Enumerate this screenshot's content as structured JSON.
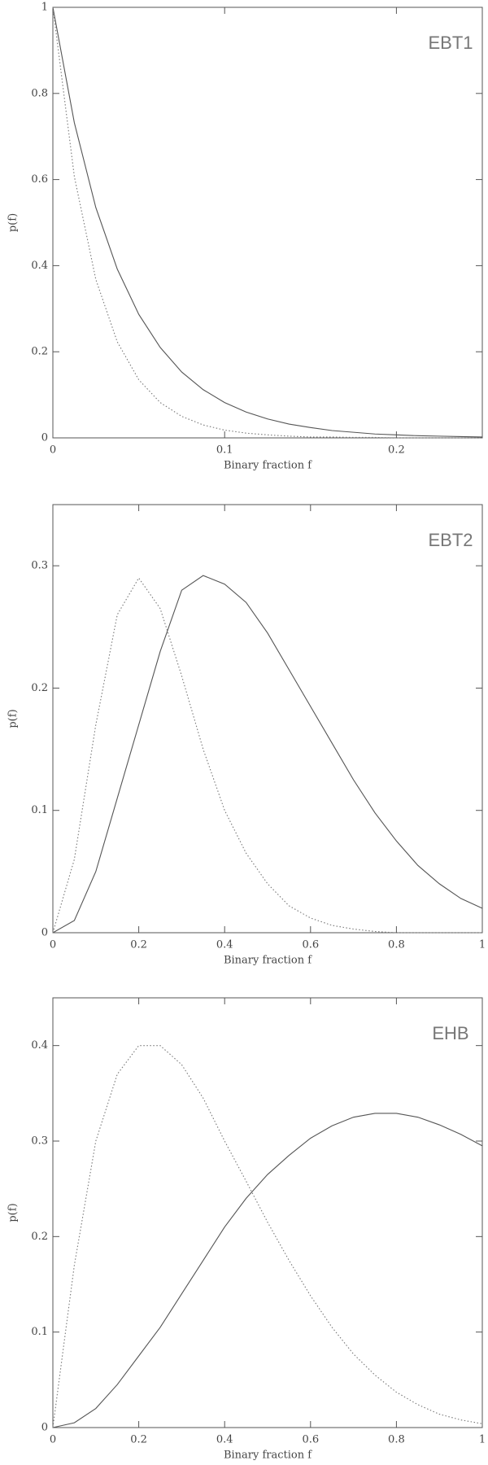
{
  "chart_data": [
    {
      "type": "line",
      "annotation": "EBT1",
      "xlabel": "Binary fraction f",
      "ylabel": "p(f)",
      "x": [
        0,
        0.0125,
        0.025,
        0.0375,
        0.05,
        0.0625,
        0.075,
        0.0875,
        0.1,
        0.1125,
        0.125,
        0.1375,
        0.15,
        0.1625,
        0.175,
        0.1875,
        0.2,
        0.2125,
        0.225,
        0.2375,
        0.25
      ],
      "series": [
        {
          "color": "#555555",
          "dashed": false,
          "values": [
            1,
            0.732,
            0.535,
            0.392,
            0.287,
            0.21,
            0.153,
            0.112,
            0.082,
            0.06,
            0.044,
            0.032,
            0.024,
            0.017,
            0.013,
            0.009,
            0.007,
            0.005,
            0.004,
            0.003,
            0.002
          ]
        },
        {
          "color": "#777777",
          "dashed": true,
          "values": [
            1,
            0.607,
            0.368,
            0.223,
            0.135,
            0.082,
            0.05,
            0.03,
            0.018,
            0.011,
            0.007,
            0.004,
            0.002,
            0.002,
            0.001,
            0.001,
            0,
            0,
            0,
            0,
            0
          ]
        }
      ],
      "xlim": [
        0,
        0.25
      ],
      "ylim": [
        0,
        1
      ],
      "xticks": [
        0,
        0.1,
        0.2
      ],
      "yticks": [
        0,
        0.2,
        0.4,
        0.6,
        0.8,
        1
      ]
    },
    {
      "type": "line",
      "annotation": "EBT2",
      "xlabel": "Binary fraction f",
      "ylabel": "p(f)",
      "x": [
        0,
        0.05,
        0.1,
        0.15,
        0.2,
        0.25,
        0.3,
        0.35,
        0.4,
        0.45,
        0.5,
        0.55,
        0.6,
        0.65,
        0.7,
        0.75,
        0.8,
        0.85,
        0.9,
        0.95,
        1
      ],
      "series": [
        {
          "color": "#555555",
          "dashed": false,
          "values": [
            0,
            0.01,
            0.05,
            0.11,
            0.17,
            0.23,
            0.28,
            0.292,
            0.285,
            0.27,
            0.245,
            0.215,
            0.185,
            0.155,
            0.125,
            0.098,
            0.075,
            0.055,
            0.04,
            0.028,
            0.02
          ]
        },
        {
          "color": "#777777",
          "dashed": true,
          "values": [
            0,
            0.06,
            0.17,
            0.26,
            0.29,
            0.265,
            0.21,
            0.15,
            0.1,
            0.065,
            0.04,
            0.022,
            0.012,
            0.006,
            0.003,
            0.001,
            0,
            0,
            0,
            0,
            0
          ]
        }
      ],
      "xlim": [
        0,
        1
      ],
      "ylim": [
        0,
        0.35
      ],
      "xticks": [
        0,
        0.2,
        0.4,
        0.6,
        0.8,
        1
      ],
      "yticks": [
        0,
        0.1,
        0.2,
        0.3
      ]
    },
    {
      "type": "line",
      "annotation": "EHB",
      "xlabel": "Binary fraction f",
      "ylabel": "p(f)",
      "x": [
        0,
        0.05,
        0.1,
        0.15,
        0.2,
        0.25,
        0.3,
        0.35,
        0.4,
        0.45,
        0.5,
        0.55,
        0.6,
        0.65,
        0.7,
        0.75,
        0.8,
        0.85,
        0.9,
        0.95,
        1
      ],
      "series": [
        {
          "color": "#555555",
          "dashed": false,
          "values": [
            0,
            0.005,
            0.02,
            0.045,
            0.075,
            0.105,
            0.14,
            0.175,
            0.21,
            0.24,
            0.265,
            0.285,
            0.303,
            0.316,
            0.325,
            0.329,
            0.329,
            0.325,
            0.317,
            0.307,
            0.295
          ]
        },
        {
          "color": "#777777",
          "dashed": true,
          "values": [
            0,
            0.17,
            0.3,
            0.37,
            0.4,
            0.4,
            0.38,
            0.345,
            0.3,
            0.258,
            0.215,
            0.175,
            0.138,
            0.105,
            0.077,
            0.055,
            0.037,
            0.024,
            0.014,
            0.008,
            0.004
          ]
        }
      ],
      "xlim": [
        0,
        1
      ],
      "ylim": [
        0,
        0.45
      ],
      "xticks": [
        0,
        0.2,
        0.4,
        0.6,
        0.8,
        1
      ],
      "yticks": [
        0,
        0.1,
        0.2,
        0.3,
        0.4
      ]
    }
  ]
}
